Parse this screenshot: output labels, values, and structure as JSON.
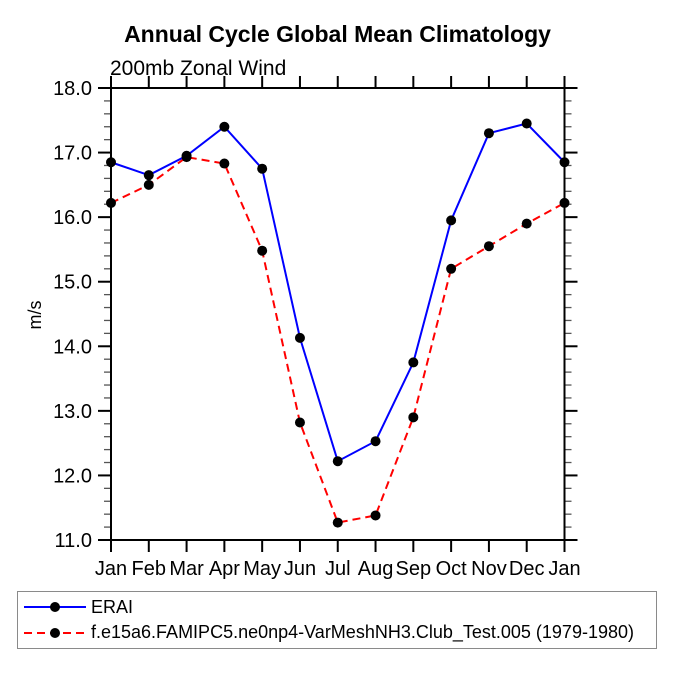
{
  "page": {
    "background_color": "#ffffff"
  },
  "chart_data": {
    "type": "line",
    "title": "Annual Cycle Global Mean Climatology",
    "subtitle": "200mb Zonal Wind",
    "xlabel": "",
    "ylabel": "m/s",
    "x_tick_labels": [
      "Jan",
      "Feb",
      "Mar",
      "Apr",
      "May",
      "Jun",
      "Jul",
      "Aug",
      "Sep",
      "Oct",
      "Nov",
      "Dec",
      "Jan"
    ],
    "y_tick_labels": [
      "11.0",
      "12.0",
      "13.0",
      "14.0",
      "15.0",
      "16.0",
      "17.0",
      "18.0"
    ],
    "ylim": [
      11.0,
      18.0
    ],
    "y_major_step": 1.0,
    "y_minor_step": 0.2,
    "grid": false,
    "legend_position": "bottom-outside-box",
    "axis_color": "#000000",
    "minor_tick_color": "#555555",
    "marker_color": "#000000",
    "series": [
      {
        "name": "ERAI",
        "color": "#0000ff",
        "line_style": "solid",
        "marker": "circle",
        "values": [
          16.85,
          16.65,
          16.95,
          17.4,
          16.75,
          14.13,
          12.22,
          12.53,
          13.75,
          15.95,
          17.3,
          17.45,
          16.85
        ]
      },
      {
        "name": "f.e15a6.FAMIPC5.ne0np4-VarMeshNH3.Club_Test.005 (1979-1980)",
        "color": "#ff0000",
        "line_style": "dashed",
        "marker": "circle",
        "values": [
          16.22,
          16.5,
          16.93,
          16.83,
          15.48,
          12.82,
          11.27,
          11.38,
          12.9,
          15.2,
          15.55,
          15.9,
          16.22
        ]
      }
    ]
  }
}
